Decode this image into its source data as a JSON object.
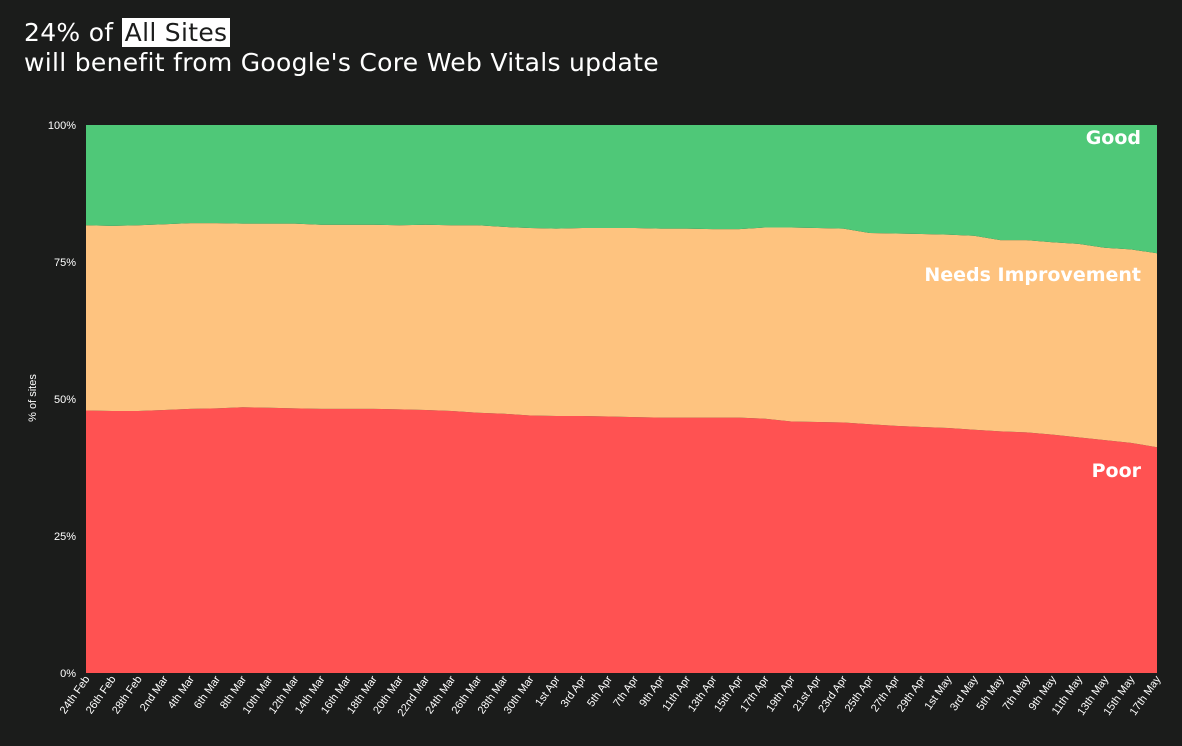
{
  "header": {
    "title_prefix": "24% of ",
    "title_highlight": "All Sites",
    "title_line2": "will benefit from Google's Core Web Vitals update"
  },
  "chart_data": {
    "type": "area",
    "stacked": true,
    "ylabel": "% of sites",
    "ylim": [
      0,
      100
    ],
    "yticks": [
      "0%",
      "25%",
      "50%",
      "75%",
      "100%"
    ],
    "yticks_values": [
      0,
      25,
      50,
      75,
      100
    ],
    "grid": false,
    "legend": "inline-right",
    "categories": [
      "24th Feb",
      "26th Feb",
      "28th Feb",
      "2nd Mar",
      "4th Mar",
      "6th Mar",
      "8th Mar",
      "10th Mar",
      "12th Mar",
      "14th Mar",
      "16th Mar",
      "18th Mar",
      "20th Mar",
      "22nd Mar",
      "24th Mar",
      "26th Mar",
      "28th Mar",
      "30th Mar",
      "1st Apr",
      "3rd Apr",
      "5th Apr",
      "7th Apr",
      "9th Apr",
      "11th Apr",
      "13th Apr",
      "15th Apr",
      "17th Apr",
      "19th Apr",
      "21st Apr",
      "23rd Apr",
      "25th Apr",
      "27th Apr",
      "29th Apr",
      "1st May",
      "3rd May",
      "5th May",
      "7th May",
      "9th May",
      "11th May",
      "13th May",
      "15th May",
      "17th May"
    ],
    "series": [
      {
        "name": "Poor",
        "color": "#ff5252",
        "values": [
          47.9,
          47.8,
          47.8,
          48.0,
          48.2,
          48.3,
          48.5,
          48.4,
          48.3,
          48.2,
          48.2,
          48.2,
          48.1,
          48.0,
          47.8,
          47.5,
          47.3,
          47.0,
          46.9,
          46.9,
          46.8,
          46.7,
          46.6,
          46.6,
          46.6,
          46.6,
          46.4,
          45.9,
          45.8,
          45.7,
          45.4,
          45.1,
          44.9,
          44.7,
          44.4,
          44.1,
          43.9,
          43.5,
          43.0,
          42.5,
          42.0,
          41.2
        ]
      },
      {
        "name": "Needs Improvement",
        "color": "#fec37f",
        "values": [
          33.8,
          33.8,
          33.9,
          33.9,
          33.9,
          33.8,
          33.5,
          33.6,
          33.7,
          33.6,
          33.6,
          33.6,
          33.6,
          33.8,
          33.9,
          34.2,
          34.1,
          34.2,
          34.2,
          34.3,
          34.4,
          34.5,
          34.5,
          34.5,
          34.4,
          34.4,
          34.9,
          35.4,
          35.4,
          35.4,
          34.9,
          35.1,
          35.2,
          35.3,
          35.4,
          34.9,
          35.1,
          35.1,
          35.3,
          35.1,
          35.3,
          35.4
        ]
      },
      {
        "name": "Good",
        "color": "#4fc878",
        "values": [
          18.3,
          18.4,
          18.3,
          18.1,
          17.9,
          17.9,
          18.0,
          18.0,
          18.0,
          18.2,
          18.2,
          18.2,
          18.3,
          18.2,
          18.3,
          18.3,
          18.6,
          18.8,
          18.9,
          18.8,
          18.8,
          18.8,
          18.9,
          18.9,
          19.0,
          19.0,
          18.7,
          18.7,
          18.8,
          18.9,
          19.7,
          19.8,
          19.9,
          20.0,
          20.2,
          21.0,
          21.0,
          21.4,
          21.7,
          22.4,
          22.7,
          23.4
        ]
      }
    ]
  }
}
